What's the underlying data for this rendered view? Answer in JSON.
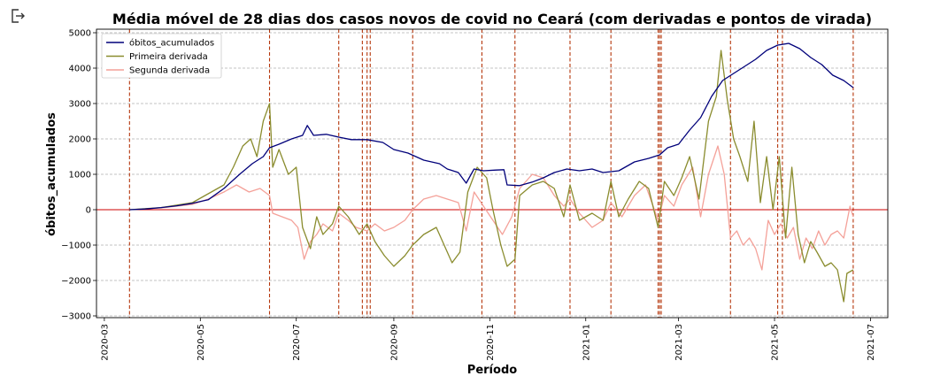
{
  "toolbar": {
    "icon": "export-icon"
  },
  "chart_data": {
    "type": "line",
    "title": "Média móvel de 28 dias dos casos novos de covid no Ceará (com derivadas e pontos de virada)",
    "xlabel": "Período",
    "ylabel": "óbitos_acumulados",
    "xlim": [
      "2020-02-25",
      "2021-07-12"
    ],
    "ylim": [
      -3050,
      5100
    ],
    "x_ticks": [
      "2020-03",
      "2020-05",
      "2020-07",
      "2020-09",
      "2020-11",
      "2021-01",
      "2021-03",
      "2021-05",
      "2021-07"
    ],
    "y_ticks": [
      -3000,
      -2000,
      -1000,
      0,
      1000,
      2000,
      3000,
      4000,
      5000
    ],
    "grid": "horizontal dashed",
    "legend_position": "top-left",
    "zero_line": {
      "value": 0,
      "color": "#cc0000"
    },
    "turning_points": [
      "2020-03-17",
      "2020-06-14",
      "2020-07-28",
      "2020-08-12",
      "2020-08-15",
      "2020-08-17",
      "2020-09-13",
      "2020-10-27",
      "2020-11-17",
      "2020-12-22",
      "2021-01-17",
      "2021-02-16",
      "2021-02-17",
      "2021-02-18",
      "2021-04-03",
      "2021-05-03",
      "2021-05-06",
      "2021-06-20"
    ],
    "turning_point_color": "#b5360b",
    "series": [
      {
        "name": "óbitos_acumulados",
        "color": "#00007a",
        "points": [
          [
            "2020-03-17",
            0
          ],
          [
            "2020-03-27",
            20
          ],
          [
            "2020-04-06",
            60
          ],
          [
            "2020-04-16",
            110
          ],
          [
            "2020-04-26",
            180
          ],
          [
            "2020-05-06",
            280
          ],
          [
            "2020-05-16",
            600
          ],
          [
            "2020-05-26",
            1000
          ],
          [
            "2020-06-03",
            1300
          ],
          [
            "2020-06-10",
            1500
          ],
          [
            "2020-06-14",
            1750
          ],
          [
            "2020-06-20",
            1850
          ],
          [
            "2020-06-28",
            2000
          ],
          [
            "2020-07-05",
            2100
          ],
          [
            "2020-07-08",
            2380
          ],
          [
            "2020-07-12",
            2100
          ],
          [
            "2020-07-20",
            2130
          ],
          [
            "2020-07-28",
            2050
          ],
          [
            "2020-08-05",
            1980
          ],
          [
            "2020-08-15",
            1980
          ],
          [
            "2020-08-25",
            1900
          ],
          [
            "2020-09-01",
            1700
          ],
          [
            "2020-09-10",
            1600
          ],
          [
            "2020-09-20",
            1400
          ],
          [
            "2020-09-30",
            1300
          ],
          [
            "2020-10-05",
            1150
          ],
          [
            "2020-10-12",
            1050
          ],
          [
            "2020-10-17",
            750
          ],
          [
            "2020-10-22",
            1150
          ],
          [
            "2020-10-28",
            1100
          ],
          [
            "2020-11-05",
            1120
          ],
          [
            "2020-11-10",
            1130
          ],
          [
            "2020-11-12",
            700
          ],
          [
            "2020-11-20",
            680
          ],
          [
            "2020-11-28",
            780
          ],
          [
            "2020-12-05",
            900
          ],
          [
            "2020-12-12",
            1050
          ],
          [
            "2020-12-20",
            1150
          ],
          [
            "2020-12-28",
            1100
          ],
          [
            "2021-01-05",
            1150
          ],
          [
            "2021-01-12",
            1050
          ],
          [
            "2021-01-22",
            1100
          ],
          [
            "2021-02-01",
            1350
          ],
          [
            "2021-02-10",
            1450
          ],
          [
            "2021-02-17",
            1550
          ],
          [
            "2021-02-22",
            1750
          ],
          [
            "2021-03-01",
            1850
          ],
          [
            "2021-03-08",
            2250
          ],
          [
            "2021-03-15",
            2600
          ],
          [
            "2021-03-22",
            3200
          ],
          [
            "2021-03-29",
            3650
          ],
          [
            "2021-04-05",
            3850
          ],
          [
            "2021-04-12",
            4050
          ],
          [
            "2021-04-19",
            4250
          ],
          [
            "2021-04-26",
            4500
          ],
          [
            "2021-05-03",
            4650
          ],
          [
            "2021-05-10",
            4700
          ],
          [
            "2021-05-17",
            4550
          ],
          [
            "2021-05-24",
            4300
          ],
          [
            "2021-05-31",
            4100
          ],
          [
            "2021-06-07",
            3800
          ],
          [
            "2021-06-14",
            3650
          ],
          [
            "2021-06-20",
            3450
          ]
        ]
      },
      {
        "name": "Primeira derivada",
        "color": "#8a8c2e",
        "points": [
          [
            "2020-03-17",
            0
          ],
          [
            "2020-04-06",
            60
          ],
          [
            "2020-04-26",
            200
          ],
          [
            "2020-05-06",
            450
          ],
          [
            "2020-05-16",
            700
          ],
          [
            "2020-05-22",
            1200
          ],
          [
            "2020-05-28",
            1800
          ],
          [
            "2020-06-02",
            2000
          ],
          [
            "2020-06-06",
            1500
          ],
          [
            "2020-06-10",
            2500
          ],
          [
            "2020-06-14",
            3000
          ],
          [
            "2020-06-16",
            1200
          ],
          [
            "2020-06-20",
            1700
          ],
          [
            "2020-06-26",
            1000
          ],
          [
            "2020-07-01",
            1200
          ],
          [
            "2020-07-05",
            -500
          ],
          [
            "2020-07-10",
            -1100
          ],
          [
            "2020-07-14",
            -200
          ],
          [
            "2020-07-18",
            -700
          ],
          [
            "2020-07-24",
            -400
          ],
          [
            "2020-07-28",
            100
          ],
          [
            "2020-08-03",
            -200
          ],
          [
            "2020-08-10",
            -700
          ],
          [
            "2020-08-15",
            -400
          ],
          [
            "2020-08-20",
            -900
          ],
          [
            "2020-08-26",
            -1300
          ],
          [
            "2020-09-01",
            -1600
          ],
          [
            "2020-09-08",
            -1300
          ],
          [
            "2020-09-13",
            -1000
          ],
          [
            "2020-09-20",
            -700
          ],
          [
            "2020-09-28",
            -500
          ],
          [
            "2020-10-03",
            -1000
          ],
          [
            "2020-10-08",
            -1500
          ],
          [
            "2020-10-13",
            -1200
          ],
          [
            "2020-10-18",
            500
          ],
          [
            "2020-10-24",
            1200
          ],
          [
            "2020-10-30",
            900
          ],
          [
            "2020-11-03",
            0
          ],
          [
            "2020-11-08",
            -1000
          ],
          [
            "2020-11-12",
            -1600
          ],
          [
            "2020-11-17",
            -1400
          ],
          [
            "2020-11-20",
            400
          ],
          [
            "2020-11-28",
            700
          ],
          [
            "2020-12-05",
            800
          ],
          [
            "2020-12-12",
            600
          ],
          [
            "2020-12-18",
            -200
          ],
          [
            "2020-12-22",
            700
          ],
          [
            "2020-12-28",
            -300
          ],
          [
            "2021-01-05",
            -100
          ],
          [
            "2021-01-12",
            -300
          ],
          [
            "2021-01-17",
            800
          ],
          [
            "2021-01-22",
            -200
          ],
          [
            "2021-01-28",
            300
          ],
          [
            "2021-02-04",
            800
          ],
          [
            "2021-02-10",
            600
          ],
          [
            "2021-02-16",
            -500
          ],
          [
            "2021-02-20",
            800
          ],
          [
            "2021-02-26",
            400
          ],
          [
            "2021-03-03",
            900
          ],
          [
            "2021-03-08",
            1500
          ],
          [
            "2021-03-14",
            300
          ],
          [
            "2021-03-20",
            2500
          ],
          [
            "2021-03-25",
            3200
          ],
          [
            "2021-03-28",
            4500
          ],
          [
            "2021-04-01",
            3100
          ],
          [
            "2021-04-05",
            2000
          ],
          [
            "2021-04-09",
            1500
          ],
          [
            "2021-04-14",
            800
          ],
          [
            "2021-04-18",
            2500
          ],
          [
            "2021-04-22",
            200
          ],
          [
            "2021-04-26",
            1500
          ],
          [
            "2021-04-30",
            0
          ],
          [
            "2021-05-04",
            1500
          ],
          [
            "2021-05-08",
            -800
          ],
          [
            "2021-05-12",
            1200
          ],
          [
            "2021-05-16",
            -700
          ],
          [
            "2021-05-20",
            -1500
          ],
          [
            "2021-05-24",
            -900
          ],
          [
            "2021-05-28",
            -1200
          ],
          [
            "2021-06-02",
            -1600
          ],
          [
            "2021-06-06",
            -1500
          ],
          [
            "2021-06-10",
            -1700
          ],
          [
            "2021-06-14",
            -2600
          ],
          [
            "2021-06-16",
            -1800
          ],
          [
            "2021-06-20",
            -1700
          ]
        ]
      },
      {
        "name": "Segunda derivada",
        "color": "#f4a199",
        "points": [
          [
            "2020-03-17",
            0
          ],
          [
            "2020-04-06",
            50
          ],
          [
            "2020-04-26",
            150
          ],
          [
            "2020-05-06",
            300
          ],
          [
            "2020-05-16",
            500
          ],
          [
            "2020-05-24",
            700
          ],
          [
            "2020-06-01",
            500
          ],
          [
            "2020-06-08",
            600
          ],
          [
            "2020-06-14",
            400
          ],
          [
            "2020-06-16",
            -100
          ],
          [
            "2020-06-22",
            -200
          ],
          [
            "2020-06-28",
            -300
          ],
          [
            "2020-07-02",
            -500
          ],
          [
            "2020-07-06",
            -1400
          ],
          [
            "2020-07-10",
            -900
          ],
          [
            "2020-07-14",
            -700
          ],
          [
            "2020-07-18",
            -400
          ],
          [
            "2020-07-24",
            -600
          ],
          [
            "2020-07-28",
            -100
          ],
          [
            "2020-08-03",
            -300
          ],
          [
            "2020-08-08",
            -500
          ],
          [
            "2020-08-15",
            -600
          ],
          [
            "2020-08-20",
            -400
          ],
          [
            "2020-08-26",
            -600
          ],
          [
            "2020-09-01",
            -500
          ],
          [
            "2020-09-08",
            -300
          ],
          [
            "2020-09-13",
            0
          ],
          [
            "2020-09-20",
            300
          ],
          [
            "2020-09-28",
            400
          ],
          [
            "2020-10-05",
            300
          ],
          [
            "2020-10-12",
            200
          ],
          [
            "2020-10-17",
            -600
          ],
          [
            "2020-10-22",
            500
          ],
          [
            "2020-10-28",
            100
          ],
          [
            "2020-11-03",
            -300
          ],
          [
            "2020-11-09",
            -700
          ],
          [
            "2020-11-15",
            -200
          ],
          [
            "2020-11-20",
            600
          ],
          [
            "2020-11-28",
            1000
          ],
          [
            "2020-12-05",
            900
          ],
          [
            "2020-12-12",
            400
          ],
          [
            "2020-12-18",
            100
          ],
          [
            "2020-12-22",
            300
          ],
          [
            "2020-12-28",
            -100
          ],
          [
            "2021-01-05",
            -500
          ],
          [
            "2021-01-12",
            -300
          ],
          [
            "2021-01-17",
            200
          ],
          [
            "2021-01-24",
            -200
          ],
          [
            "2021-02-01",
            400
          ],
          [
            "2021-02-08",
            700
          ],
          [
            "2021-02-16",
            -300
          ],
          [
            "2021-02-20",
            400
          ],
          [
            "2021-02-26",
            100
          ],
          [
            "2021-03-03",
            700
          ],
          [
            "2021-03-10",
            1200
          ],
          [
            "2021-03-15",
            -200
          ],
          [
            "2021-03-20",
            1000
          ],
          [
            "2021-03-26",
            1800
          ],
          [
            "2021-03-30",
            1000
          ],
          [
            "2021-04-03",
            -800
          ],
          [
            "2021-04-07",
            -600
          ],
          [
            "2021-04-11",
            -1000
          ],
          [
            "2021-04-15",
            -800
          ],
          [
            "2021-04-19",
            -1100
          ],
          [
            "2021-04-23",
            -1700
          ],
          [
            "2021-04-27",
            -300
          ],
          [
            "2021-05-01",
            -700
          ],
          [
            "2021-05-05",
            -400
          ],
          [
            "2021-05-09",
            -800
          ],
          [
            "2021-05-13",
            -500
          ],
          [
            "2021-05-17",
            -1400
          ],
          [
            "2021-05-21",
            -800
          ],
          [
            "2021-05-25",
            -1100
          ],
          [
            "2021-05-29",
            -600
          ],
          [
            "2021-06-02",
            -1000
          ],
          [
            "2021-06-06",
            -700
          ],
          [
            "2021-06-10",
            -600
          ],
          [
            "2021-06-14",
            -800
          ],
          [
            "2021-06-18",
            100
          ],
          [
            "2021-06-20",
            -200
          ]
        ]
      }
    ]
  }
}
